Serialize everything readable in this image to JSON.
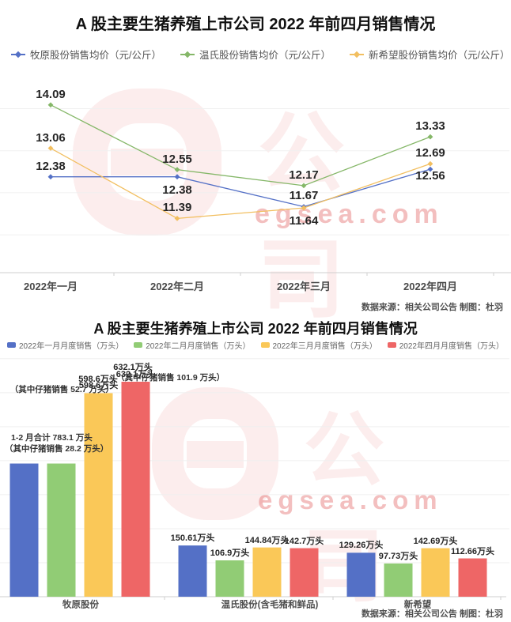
{
  "watermark": {
    "cn": "公司",
    "site": "egsea.com"
  },
  "colors": {
    "line_blue": "#5470c6",
    "line_green": "#85b768",
    "line_orange": "#f2bf60",
    "bar_blue": "#5470c6",
    "bar_green": "#91cc75",
    "bar_yellow": "#fac858",
    "bar_red": "#ee6666",
    "watermark_pink": "rgba(229,83,83,0.10)",
    "watermark_site_pink": "rgba(224,96,96,0.40)"
  },
  "chart_data": [
    {
      "type": "line",
      "title": "A 股主要生猪养殖上市公司 2022 年前四月销售情况",
      "categories": [
        "2022年一月",
        "2022年二月",
        "2022年三月",
        "2022年四月"
      ],
      "series": [
        {
          "name": "牧原股份销售均价（元/公斤）",
          "color": "#5470c6",
          "values": [
            12.38,
            12.38,
            11.67,
            12.56
          ]
        },
        {
          "name": "温氏股份销售均价（元/公斤）",
          "color": "#85b768",
          "values": [
            14.09,
            12.55,
            12.17,
            13.33
          ]
        },
        {
          "name": "新希望股份销售均价（元/公斤）",
          "color": "#f2bf60",
          "values": [
            13.06,
            11.39,
            11.64,
            12.69
          ]
        }
      ],
      "ylim": [
        10.1,
        14.9
      ],
      "grid_values": [
        11,
        12,
        13,
        14
      ],
      "grid": "on",
      "legend_position": "top-left",
      "source": "数据来源：相关公司公告 制图：杜羽"
    },
    {
      "type": "bar",
      "title": "A 股主要生猪养殖上市公司 2022 年前四月销售情况",
      "categories": [
        "牧原股份",
        "温氏股份(含毛猪和鲜品)",
        "新希望"
      ],
      "series": [
        {
          "name": "2022年一月月度销售（万头）",
          "color": "#5470c6",
          "values": [
            391.55,
            150.61,
            129.26
          ],
          "labels": [
            "",
            "150.61万头",
            "129.26万头"
          ]
        },
        {
          "name": "2022年二月月度销售（万头）",
          "color": "#91cc75",
          "values": [
            391.55,
            106.9,
            97.73
          ],
          "labels": [
            "",
            "106.9万头",
            "97.73万头"
          ]
        },
        {
          "name": "2022年三月月度销售（万头）",
          "color": "#fac858",
          "values": [
            598.6,
            144.84,
            142.69
          ],
          "labels": [
            "598.6万头",
            "144.84万头",
            "142.69万头"
          ]
        },
        {
          "name": "2022年四月月度销售（万头）",
          "color": "#ee6666",
          "values": [
            632.1,
            142.7,
            112.66
          ],
          "labels": [
            "632.1万头",
            "142.7万头",
            "112.66万头"
          ]
        }
      ],
      "annotations": [
        {
          "text": "1-2 月合计 783.1 万头"
        },
        {
          "text": "（其中仔猪销售 28.2 万头）"
        },
        {
          "text": "598.6万头"
        },
        {
          "text": "（其中仔猪销售 52.7 万头）"
        },
        {
          "text": "632.1万头"
        },
        {
          "text": "（其中仔猪销售 101.9 万头）"
        }
      ],
      "ylim": [
        0,
        700
      ],
      "grid": "on",
      "legend_position": "top-center",
      "source": "数据来源：相关公司公告 制图：杜羽"
    }
  ]
}
